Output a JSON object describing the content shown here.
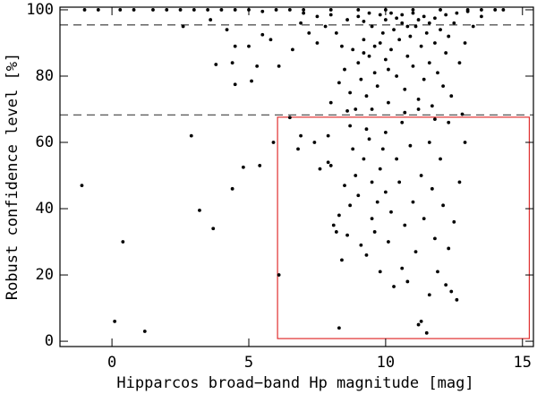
{
  "chart_data": {
    "type": "scatter",
    "xlabel": "Hipparcos broad−band Hp magnitude [mag]",
    "ylabel": "Robust confidence level [%]",
    "xlim": [
      -1.9,
      15.4
    ],
    "ylim": [
      -1.6,
      100.8
    ],
    "xticks": [
      0,
      5,
      10,
      15
    ],
    "yticks": [
      0,
      20,
      40,
      60,
      80,
      100
    ],
    "color": "#000000",
    "hlines": [
      95.45,
      68.27
    ],
    "hline_color": "#555555",
    "box": {
      "x": [
        6.05,
        15.25
      ],
      "y": [
        0.8,
        67.6
      ],
      "color": "#e03030"
    },
    "x": [
      -1.1,
      0.1,
      0.4,
      1.2,
      2.9,
      3.2,
      3.7,
      4.4,
      4.8,
      5.4,
      5.9,
      6.1,
      3.8,
      4.4,
      4.5,
      5.1,
      4.2,
      4.5,
      5.0,
      5.3,
      3.6,
      2.6,
      5.5,
      5.8,
      6.1,
      6.6,
      6.5,
      6.8,
      6.9,
      7.4,
      7.6,
      7.9,
      7.9,
      8.0,
      8.1,
      8.2,
      8.3,
      8.4,
      8.3,
      8.6,
      8.5,
      8.7,
      8.8,
      8.9,
      9.0,
      9.1,
      9.2,
      9.3,
      9.4,
      9.5,
      9.5,
      9.6,
      9.7,
      9.8,
      9.8,
      9.9,
      10.0,
      10.1,
      10.2,
      10.3,
      10.4,
      10.5,
      10.6,
      10.7,
      10.8,
      10.9,
      11.0,
      11.1,
      11.2,
      11.3,
      11.3,
      11.4,
      11.5,
      11.6,
      11.6,
      11.7,
      11.8,
      11.9,
      12.0,
      12.1,
      12.2,
      12.3,
      12.4,
      12.5,
      12.6,
      12.7,
      12.9,
      10.0,
      9.3,
      8.7,
      10.6,
      11.8,
      12.3,
      12.8,
      8.0,
      8.3,
      8.5,
      8.7,
      8.8,
      8.9,
      9.0,
      9.1,
      9.2,
      9.3,
      9.4,
      9.5,
      9.6,
      9.7,
      9.8,
      9.9,
      10.0,
      10.0,
      10.1,
      10.2,
      10.3,
      10.4,
      10.5,
      10.6,
      10.7,
      10.8,
      10.9,
      11.0,
      11.1,
      11.2,
      11.3,
      11.4,
      11.5,
      11.6,
      11.7,
      11.8,
      11.9,
      12.0,
      12.1,
      12.2,
      12.3,
      12.4,
      12.5,
      12.7,
      12.9,
      13.2,
      13.5,
      7.5,
      7.8,
      8.2,
      8.6,
      9.0,
      9.4,
      9.8,
      10.2,
      10.6,
      11.0,
      11.4,
      11.8,
      12.2,
      12.6,
      13.0,
      9.2,
      10.4,
      11.2,
      8.4,
      9.6,
      10.8,
      11.6,
      7.2,
      6.9,
      7.0,
      7.5,
      8.0,
      9.2,
      10.1,
      10.7,
      9.5,
      11.2,
      8.6,
      -1.0,
      -0.5,
      0.3,
      0.8,
      1.5,
      2.0,
      2.5,
      3.0,
      3.5,
      4.0,
      4.5,
      5.0,
      5.5,
      6.0,
      6.5,
      7.0,
      8.0,
      9.0,
      10.0,
      11.0,
      12.0,
      13.0,
      13.5,
      14.0,
      14.3
    ],
    "values": [
      47,
      6,
      30,
      3,
      62,
      39.5,
      34,
      46,
      52.5,
      53,
      60,
      20,
      83.5,
      84,
      77.5,
      78.5,
      94,
      89,
      89,
      83,
      97,
      95,
      92.5,
      91,
      83,
      88,
      67.5,
      58,
      62,
      60,
      52,
      62,
      54,
      53,
      35,
      33,
      38,
      24.5,
      4,
      32,
      47,
      41,
      58,
      50,
      44,
      29,
      55,
      26,
      61,
      37,
      48,
      33,
      42,
      52,
      21,
      58,
      45,
      30,
      39,
      16.5,
      55,
      48,
      22,
      35,
      18,
      59,
      42,
      27,
      5,
      6,
      50,
      37,
      2.5,
      60,
      14,
      46,
      31,
      21,
      55,
      41,
      17,
      28,
      15,
      36,
      12.5,
      48,
      60,
      63,
      64,
      65,
      66,
      67,
      66,
      68.5,
      72,
      78,
      82,
      75,
      88,
      70,
      84,
      79,
      91,
      74,
      86,
      95,
      81,
      77,
      90,
      93,
      85,
      97,
      72,
      88,
      94,
      80,
      91,
      96,
      76,
      86,
      92,
      83,
      95,
      73,
      89,
      79,
      93,
      84,
      71,
      90,
      81,
      94,
      77,
      87,
      92,
      74,
      96,
      84,
      90,
      95,
      98,
      90,
      95,
      93,
      97,
      98,
      99,
      98.5,
      99,
      98.5,
      99,
      98,
      97.5,
      98.5,
      99,
      99.5,
      96.5,
      97.5,
      97,
      89,
      89,
      95,
      96,
      93,
      96,
      99,
      98,
      98.5,
      87,
      82,
      69,
      70,
      70,
      69.5,
      100,
      100,
      100,
      100,
      100,
      100,
      100,
      100,
      100,
      100,
      100,
      100,
      99.5,
      100,
      100,
      100,
      100,
      100,
      100,
      100,
      100,
      100,
      100,
      100,
      100
    ]
  }
}
